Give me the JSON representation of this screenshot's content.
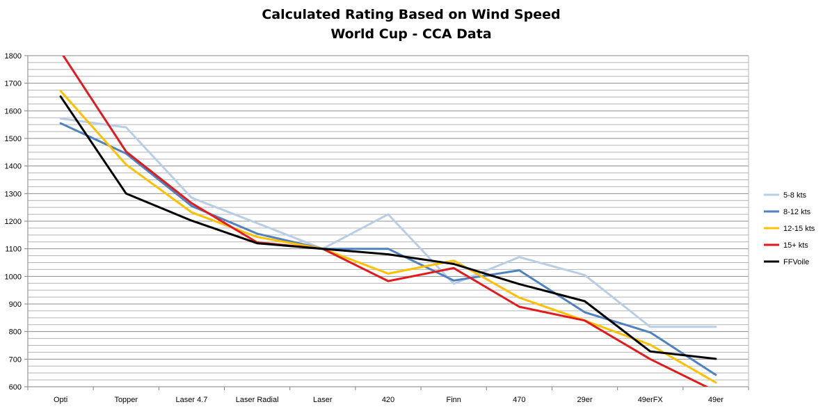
{
  "chart_data": {
    "type": "line",
    "title": "Calculated Rating Based on Wind Speed",
    "subtitle": "World Cup - CCA Data",
    "xlabel": "",
    "ylabel": "",
    "ylim": [
      600,
      1800
    ],
    "y_ticks": [
      600,
      700,
      800,
      900,
      1000,
      1100,
      1200,
      1300,
      1400,
      1500,
      1600,
      1700,
      1800
    ],
    "grid": true,
    "legend_position": "right",
    "categories": [
      "Opti",
      "Topper",
      "Laser 4.7",
      "Laser Radial",
      "Laser",
      "420",
      "Finn",
      "470",
      "29er",
      "49erFX",
      "49er"
    ],
    "series": [
      {
        "name": "5-8 kts",
        "color": "#B9CDE5",
        "values": [
          1572,
          1540,
          1285,
          1193,
          1100,
          1225,
          973,
          1070,
          1005,
          817,
          817
        ]
      },
      {
        "name": "8-12 kts",
        "color": "#4F81BD",
        "values": [
          1555,
          1445,
          1255,
          1155,
          1100,
          1100,
          985,
          1022,
          870,
          797,
          643
        ]
      },
      {
        "name": "12-15 kts",
        "color": "#FFC000",
        "values": [
          1672,
          1405,
          1232,
          1143,
          1100,
          1010,
          1057,
          923,
          840,
          752,
          615
        ]
      },
      {
        "name": "15+ kts",
        "color": "#E31A1C",
        "values": [
          1815,
          1452,
          1265,
          1123,
          1100,
          983,
          1030,
          890,
          840,
          700,
          583
        ]
      },
      {
        "name": "FFVoile",
        "color": "#000000",
        "values": [
          1652,
          1300,
          1202,
          1120,
          1100,
          1080,
          1045,
          972,
          910,
          728,
          701
        ]
      }
    ]
  }
}
